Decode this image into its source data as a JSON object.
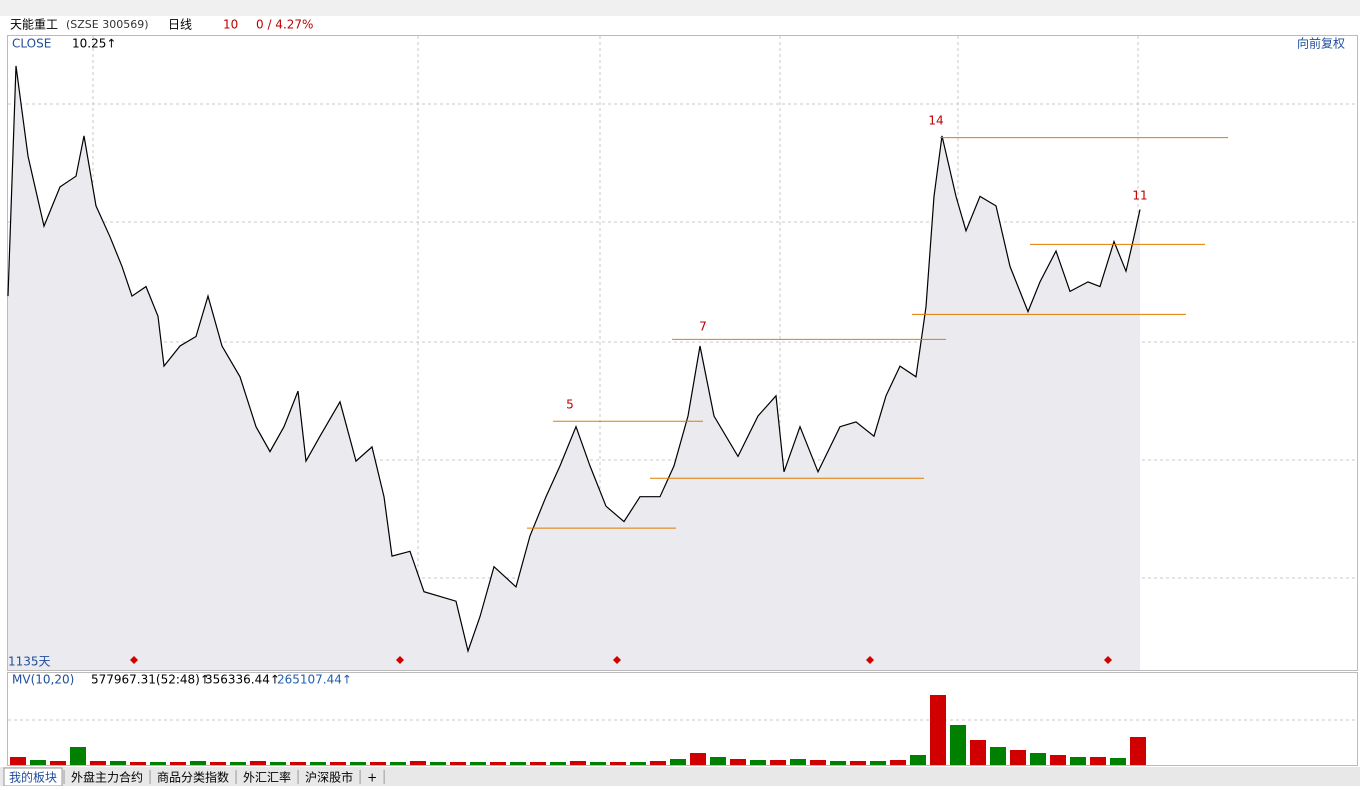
{
  "toolbar": {
    "stock": "天能重工",
    "code": "(SZSE 300569)",
    "period": "日线",
    "count": "10",
    "change": "0 / 4.27%"
  },
  "chart_data": [
    {
      "type": "line",
      "series_label": "CLOSE",
      "last_value_label": "10.25↑",
      "adjust": "向前复权",
      "span": "1135天",
      "color": "#000000",
      "fill": "#ebebef",
      "xlim": [
        0,
        1349
      ],
      "ylim": [
        6.37,
        11.72
      ],
      "x": [
        0,
        8,
        20,
        36,
        52,
        68,
        76,
        88,
        102,
        114,
        124,
        138,
        150,
        156,
        172,
        188,
        200,
        214,
        232,
        248,
        262,
        276,
        290,
        298,
        312,
        332,
        348,
        364,
        376,
        384,
        402,
        416,
        432,
        448,
        460,
        472,
        486,
        508,
        522,
        538,
        552,
        568,
        582,
        598,
        616,
        632,
        652,
        666,
        680,
        692,
        706,
        730,
        750,
        768,
        776,
        792,
        810,
        832,
        848,
        866,
        878,
        892,
        908,
        918,
        926,
        934,
        948,
        958,
        972,
        988,
        1002,
        1020,
        1032,
        1048,
        1062,
        1080,
        1092,
        1106,
        1118,
        1126,
        1132
      ],
      "values": [
        9.52,
        11.46,
        10.7,
        10.11,
        10.44,
        10.53,
        10.87,
        10.28,
        10.02,
        9.77,
        9.52,
        9.6,
        9.35,
        8.93,
        9.1,
        9.18,
        9.52,
        9.1,
        8.84,
        8.42,
        8.21,
        8.42,
        8.72,
        8.13,
        8.34,
        8.63,
        8.13,
        8.25,
        7.83,
        7.33,
        7.37,
        7.03,
        6.99,
        6.95,
        6.53,
        6.82,
        7.24,
        7.07,
        7.5,
        7.83,
        8.09,
        8.42,
        8.09,
        7.75,
        7.62,
        7.83,
        7.83,
        8.09,
        8.51,
        9.1,
        8.51,
        8.17,
        8.51,
        8.68,
        8.04,
        8.42,
        8.04,
        8.42,
        8.46,
        8.34,
        8.68,
        8.93,
        8.84,
        9.43,
        10.36,
        10.87,
        10.36,
        10.07,
        10.36,
        10.28,
        9.77,
        9.39,
        9.64,
        9.9,
        9.56,
        9.64,
        9.6,
        9.98,
        9.73,
        10.02,
        10.25
      ],
      "level_color": "#e07b00",
      "levels": [
        {
          "value": 10.86,
          "x": [
            932,
            1220
          ]
        },
        {
          "value": 9.96,
          "x": [
            1022,
            1197
          ]
        },
        {
          "value": 9.37,
          "x": [
            904,
            1178
          ]
        },
        {
          "value": 9.16,
          "x": [
            664,
            938
          ]
        },
        {
          "value": 8.47,
          "x": [
            545,
            695
          ]
        },
        {
          "value": 7.99,
          "x": [
            642,
            916
          ]
        },
        {
          "value": 7.57,
          "x": [
            519,
            668
          ]
        }
      ],
      "annotations": [
        "5",
        "7",
        "14",
        "11"
      ],
      "annotation_color": "#c00000"
    },
    {
      "type": "bar",
      "indicator": "MV(10,20)",
      "volume_label": "577967.31(52:48)↑",
      "mv10_label": "356336.44↑",
      "mv20_label": "265107.44↑",
      "colors": [
        "#d00000",
        "#008000"
      ],
      "xlim": [
        0,
        1349
      ],
      "ylim": [
        0,
        2000000
      ],
      "x": [
        10,
        30,
        50,
        70,
        90,
        110,
        130,
        150,
        170,
        190,
        210,
        230,
        250,
        270,
        290,
        310,
        330,
        350,
        370,
        390,
        410,
        430,
        450,
        470,
        490,
        510,
        530,
        550,
        570,
        590,
        610,
        630,
        650,
        670,
        690,
        710,
        730,
        750,
        770,
        790,
        810,
        830,
        850,
        870,
        890,
        910,
        930,
        950,
        970,
        990,
        1010,
        1030,
        1050,
        1070,
        1090,
        1110,
        1130
      ],
      "values": [
        200000,
        125000,
        100000,
        450000,
        100000,
        100000,
        75000,
        75000,
        75000,
        100000,
        75000,
        75000,
        100000,
        75000,
        75000,
        75000,
        75000,
        75000,
        75000,
        75000,
        100000,
        75000,
        75000,
        75000,
        75000,
        75000,
        75000,
        75000,
        100000,
        75000,
        75000,
        75000,
        100000,
        150000,
        300000,
        200000,
        150000,
        125000,
        125000,
        150000,
        125000,
        100000,
        100000,
        100000,
        125000,
        250000,
        1750000,
        1000000,
        625000,
        450000,
        375000,
        300000,
        250000,
        200000,
        200000,
        175000,
        700000
      ]
    }
  ],
  "tabs": [
    "我的板块",
    "外盘主力合约",
    "商品分类指数",
    "外汇汇率",
    "沪深股市",
    "+"
  ]
}
